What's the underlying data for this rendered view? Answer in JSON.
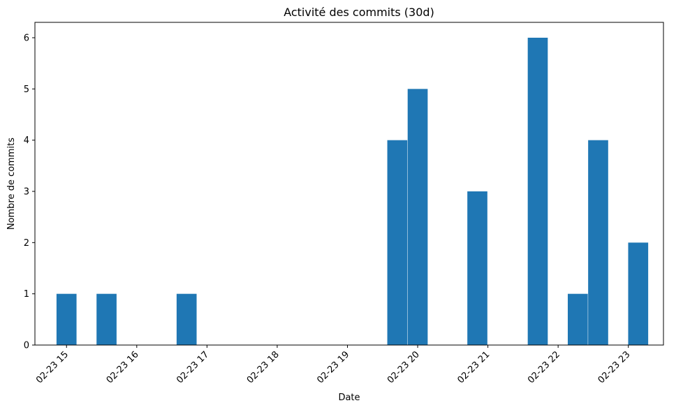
{
  "chart_data": {
    "type": "bar",
    "title": "Activité des commits (30d)",
    "xlabel": "Date",
    "ylabel": "Nombre de commits",
    "ylim": [
      0,
      6.3
    ],
    "y_ticks": [
      "0",
      "1",
      "2",
      "3",
      "4",
      "5",
      "6"
    ],
    "x_tick_labels": [
      "02-23 15",
      "02-23 16",
      "02-23 17",
      "02-23 18",
      "02-23 19",
      "02-23 20",
      "02-23 21",
      "02-23 22",
      "02-23 23"
    ],
    "x_tick_hours": [
      15,
      16,
      17,
      18,
      19,
      20,
      21,
      22,
      23
    ],
    "xlim_hours": [
      14.55,
      23.5
    ],
    "bar_width_hours": 0.285,
    "bar_color": "#1f77b4",
    "grid": false,
    "series": [
      {
        "x_hours": [
          15.0,
          15.57,
          16.71,
          19.71,
          20.0,
          20.85,
          21.71,
          22.28,
          22.57,
          23.14
        ],
        "values": [
          1,
          1,
          1,
          4,
          5,
          3,
          6,
          1,
          4,
          2
        ]
      }
    ]
  }
}
